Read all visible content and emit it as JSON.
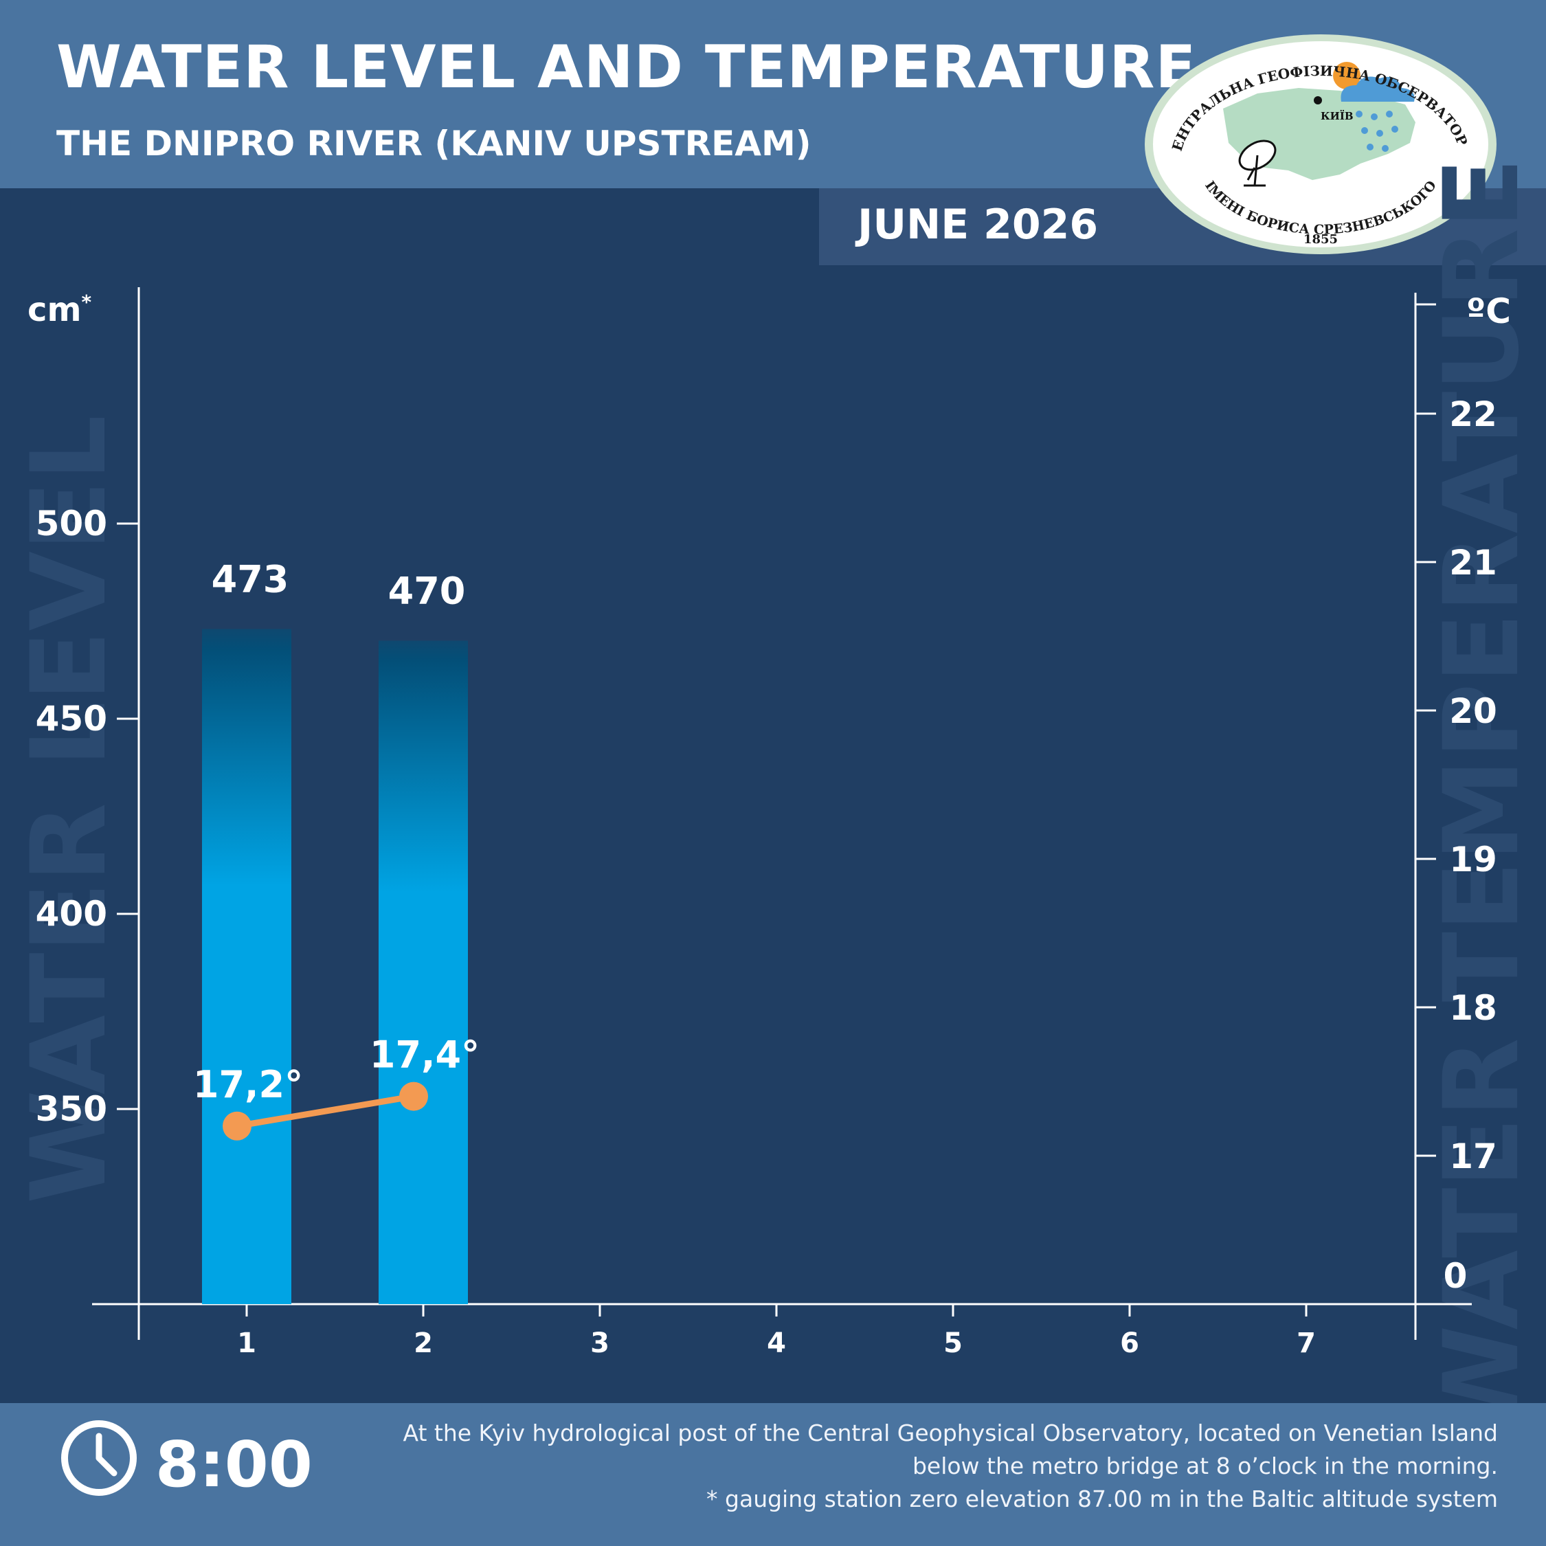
{
  "header": {
    "title": "WATER LEVEL AND TEMPERATURE",
    "subtitle": "THE DNIPRO RIVER (KANIV UPSTREAM)",
    "month": "JUNE 2026"
  },
  "logo": {
    "top_text": "ЦЕНТРАЛЬНА ГЕОФІЗИЧНА ОБСЕРВАТОРІЯ",
    "bottom_text": "ІМЕНІ БОРИСА СРЕЗНЕВСЬКОГО",
    "year": "1855",
    "city": "КИЇВ"
  },
  "footer": {
    "time": "8:00",
    "note_line1": "At the Kyiv hydrological post of the Central Geophysical Observatory, located on Venetian Island",
    "note_line2": "below the metro bridge  at 8 o’clock in the morning.",
    "note_line3": "* gauging station zero elevation 87.00 m in the Baltic altitude system"
  },
  "chart_data": {
    "type": "bar",
    "categories": [
      "1",
      "2",
      "3",
      "4",
      "5",
      "6",
      "7"
    ],
    "series": [
      {
        "values": [
          473,
          470,
          null,
          null,
          null,
          null,
          null
        ],
        "value_labels": [
          "473",
          "470"
        ]
      },
      {
        "values": [
          17.2,
          17.4,
          null,
          null,
          null,
          null,
          null
        ],
        "value_labels": [
          "17,2°",
          "17,4°"
        ]
      }
    ],
    "left_axis": {
      "unit": "cm",
      "unit_mark": "*",
      "watermark": "WATER LEVEL",
      "ticks": [
        350,
        400,
        450,
        500
      ]
    },
    "right_axis": {
      "unit": "ºC",
      "watermark": "WATER TEMPERATURE",
      "ticks": [
        17,
        18,
        19,
        20,
        21,
        22
      ],
      "baseline_label": "0"
    },
    "colors": {
      "bar_bottom": "#00a4e4",
      "bar_top": "#034f78",
      "temp_line": "#f39a52",
      "axis": "#ffffff",
      "watermark": "#2b4a70"
    }
  }
}
